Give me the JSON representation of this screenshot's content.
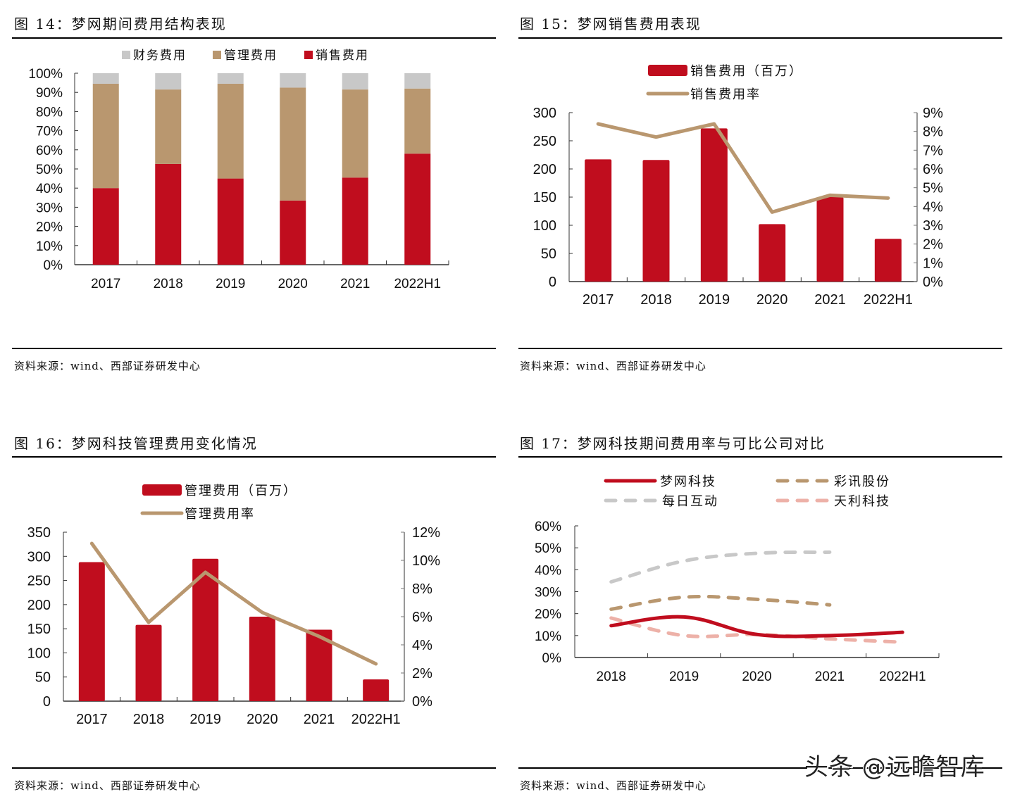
{
  "colors": {
    "red": "#C00D1E",
    "tan": "#B9976F",
    "gray": "#C8C8C8",
    "pink": "#EDB1A8",
    "axis": "#333333"
  },
  "source_text": "资料来源：wind、西部证券研发中心",
  "watermark": "头条 @远瞻智库",
  "chart_data": [
    {
      "id": "fig14",
      "figure_title": "图 14：梦网期间费用结构表现",
      "type": "bar",
      "stacked": true,
      "categories": [
        "2017",
        "2018",
        "2019",
        "2020",
        "2021",
        "2022H1"
      ],
      "legend": [
        "财务费用",
        "管理费用",
        "销售费用"
      ],
      "legend_position": "top",
      "series": [
        {
          "name": "销售费用",
          "color_key": "red",
          "values": [
            40.0,
            52.6,
            45.0,
            33.5,
            45.5,
            58.0
          ]
        },
        {
          "name": "管理费用",
          "color_key": "tan",
          "values": [
            54.5,
            38.9,
            49.5,
            59.0,
            46.0,
            34.0
          ]
        },
        {
          "name": "财务费用",
          "color_key": "gray",
          "values": [
            5.5,
            8.5,
            5.5,
            7.5,
            8.5,
            8.0
          ]
        }
      ],
      "ylim": [
        0,
        100
      ],
      "yticks": [
        "0%",
        "10%",
        "20%",
        "30%",
        "40%",
        "50%",
        "60%",
        "70%",
        "80%",
        "90%",
        "100%"
      ],
      "xlabel": "",
      "ylabel": "",
      "grid": false
    },
    {
      "id": "fig15",
      "figure_title": "图 15：梦网销售费用表现",
      "type": "bar",
      "categories": [
        "2017",
        "2018",
        "2019",
        "2020",
        "2021",
        "2022H1"
      ],
      "legend": [
        "销售费用（百万）",
        "销售费用率"
      ],
      "legend_position": "top",
      "series": [
        {
          "name": "销售费用（百万）",
          "type": "bar",
          "axis": "left",
          "color_key": "tan_bar",
          "values": [
            217,
            216,
            272,
            102,
            150,
            76
          ]
        },
        {
          "name": "销售费用率",
          "type": "line",
          "axis": "right",
          "values": [
            8.4,
            7.7,
            8.4,
            3.7,
            4.6,
            4.45
          ]
        }
      ],
      "ylim": [
        0,
        300
      ],
      "yticks": [
        "0",
        "50",
        "100",
        "150",
        "200",
        "250",
        "300"
      ],
      "y2lim": [
        0,
        9
      ],
      "y2ticks": [
        "0%",
        "1%",
        "2%",
        "3%",
        "4%",
        "5%",
        "6%",
        "7%",
        "8%",
        "9%"
      ],
      "grid": false
    },
    {
      "id": "fig16",
      "figure_title": "图 16：梦网科技管理费用变化情况",
      "type": "bar",
      "categories": [
        "2017",
        "2018",
        "2019",
        "2020",
        "2021",
        "2022H1"
      ],
      "legend": [
        "管理费用（百万）",
        "管理费用率"
      ],
      "legend_position": "top",
      "series": [
        {
          "name": "管理费用（百万）",
          "type": "bar",
          "axis": "left",
          "values": [
            288,
            158,
            295,
            175,
            148,
            45
          ]
        },
        {
          "name": "管理费用率",
          "type": "line",
          "axis": "right",
          "values": [
            11.2,
            5.6,
            9.15,
            6.3,
            4.6,
            2.65
          ]
        }
      ],
      "ylim": [
        0,
        350
      ],
      "yticks": [
        "0",
        "50",
        "100",
        "150",
        "200",
        "250",
        "300",
        "350"
      ],
      "y2lim": [
        0,
        12
      ],
      "y2ticks": [
        "0%",
        "2%",
        "4%",
        "6%",
        "8%",
        "10%",
        "12%"
      ],
      "grid": false
    },
    {
      "id": "fig17",
      "figure_title": "图 17：梦网科技期间费用率与可比公司对比",
      "type": "line",
      "categories": [
        "2018",
        "2019",
        "2020",
        "2021",
        "2022H1"
      ],
      "legend": [
        "梦网科技",
        "彩讯股份",
        "每日互动",
        "天利科技"
      ],
      "legend_position": "top",
      "series": [
        {
          "name": "每日互动",
          "style": "dashed",
          "color_key": "gray",
          "values": [
            34.5,
            44.0,
            47.5,
            48.0,
            null
          ]
        },
        {
          "name": "彩讯股份",
          "style": "dashed",
          "color_key": "tan",
          "values": [
            22.0,
            27.5,
            26.5,
            24.0,
            null
          ]
        },
        {
          "name": "天利科技",
          "style": "dashed",
          "color_key": "pink",
          "values": [
            18.0,
            10.0,
            10.5,
            8.5,
            7.0
          ]
        },
        {
          "name": "梦网科技",
          "style": "solid",
          "color_key": "red",
          "values": [
            14.5,
            18.5,
            10.5,
            10.0,
            11.5
          ]
        }
      ],
      "ylim": [
        0,
        60
      ],
      "yticks": [
        "0%",
        "10%",
        "20%",
        "30%",
        "40%",
        "50%",
        "60%"
      ],
      "grid": false
    }
  ]
}
